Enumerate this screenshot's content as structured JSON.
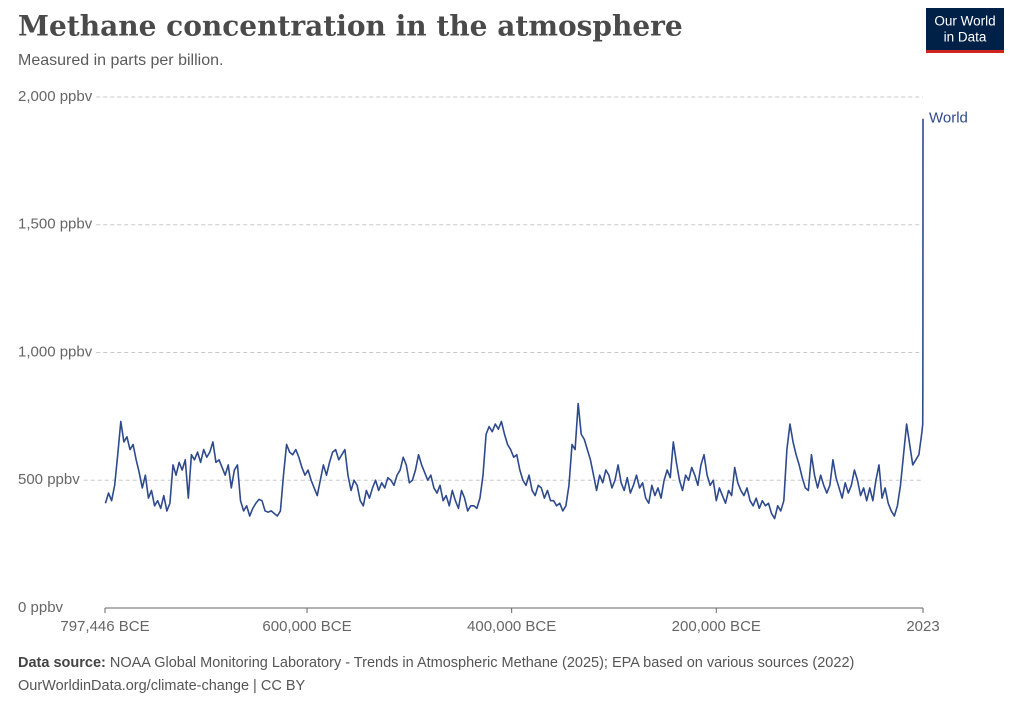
{
  "chart_data": {
    "type": "line",
    "title": "Methane concentration in the atmosphere",
    "subtitle": "Measured in parts per billion.",
    "logo": [
      "Our World",
      "in Data"
    ],
    "source_label": "Data source:",
    "source": "NOAA Global Monitoring Laboratory - Trends in Atmospheric Methane (2025); EPA based on various sources (2022)",
    "footer": "OurWorldinData.org/climate-change | CC BY",
    "grid": true,
    "xlim": [
      -797446,
      2023
    ],
    "xticks": [
      {
        "value": -797446,
        "label": "797,446 BCE"
      },
      {
        "value": -600000,
        "label": "600,000 BCE"
      },
      {
        "value": -400000,
        "label": "400,000 BCE"
      },
      {
        "value": -200000,
        "label": "200,000 BCE"
      },
      2023
    ],
    "ylim": [
      0,
      2000
    ],
    "yticks": [
      {
        "value": 0,
        "label": "0 ppbv"
      },
      {
        "value": 500,
        "label": "500 ppbv"
      },
      {
        "value": 1000,
        "label": "1,000 ppbv"
      },
      {
        "value": 1500,
        "label": "1,500 ppbv"
      },
      {
        "value": 2000,
        "label": "2,000 ppbv"
      }
    ],
    "x": [
      -797000,
      -794000,
      -791000,
      -788000,
      -785000,
      -782000,
      -779000,
      -776000,
      -773000,
      -770000,
      -767000,
      -764000,
      -761000,
      -758000,
      -755000,
      -752000,
      -749000,
      -746000,
      -743000,
      -740000,
      -737000,
      -734000,
      -731000,
      -728000,
      -725000,
      -722000,
      -719000,
      -716000,
      -713000,
      -710000,
      -707000,
      -704000,
      -701000,
      -698000,
      -695000,
      -692000,
      -689000,
      -686000,
      -683000,
      -680000,
      -677000,
      -674000,
      -671000,
      -668000,
      -665000,
      -662000,
      -659000,
      -656000,
      -653000,
      -650000,
      -647000,
      -644000,
      -641000,
      -638000,
      -635000,
      -632000,
      -629000,
      -626000,
      -623000,
      -620000,
      -617000,
      -614000,
      -611000,
      -608000,
      -605000,
      -602000,
      -599000,
      -596000,
      -593000,
      -590000,
      -587000,
      -584000,
      -581000,
      -578000,
      -575000,
      -572000,
      -569000,
      -566000,
      -563000,
      -560000,
      -557000,
      -554000,
      -551000,
      -548000,
      -545000,
      -542000,
      -539000,
      -536000,
      -533000,
      -530000,
      -527000,
      -524000,
      -521000,
      -518000,
      -515000,
      -512000,
      -509000,
      -506000,
      -503000,
      -500000,
      -497000,
      -494000,
      -491000,
      -488000,
      -485000,
      -482000,
      -479000,
      -476000,
      -473000,
      -470000,
      -467000,
      -464000,
      -461000,
      -458000,
      -455000,
      -452000,
      -449000,
      -446000,
      -443000,
      -440000,
      -437000,
      -434000,
      -431000,
      -428000,
      -425000,
      -422000,
      -419000,
      -416000,
      -413000,
      -410000,
      -407000,
      -404000,
      -401000,
      -398000,
      -395000,
      -392000,
      -389000,
      -386000,
      -383000,
      -380000,
      -377000,
      -374000,
      -371000,
      -368000,
      -365000,
      -362000,
      -359000,
      -356000,
      -353000,
      -350000,
      -347000,
      -344000,
      -341000,
      -338000,
      -335000,
      -332000,
      -329000,
      -326000,
      -323000,
      -320000,
      -317000,
      -314000,
      -311000,
      -308000,
      -305000,
      -302000,
      -299000,
      -296000,
      -293000,
      -290000,
      -287000,
      -284000,
      -281000,
      -278000,
      -275000,
      -272000,
      -269000,
      -266000,
      -263000,
      -260000,
      -257000,
      -254000,
      -251000,
      -248000,
      -245000,
      -242000,
      -239000,
      -236000,
      -233000,
      -230000,
      -227000,
      -224000,
      -221000,
      -218000,
      -215000,
      -212000,
      -209000,
      -206000,
      -203000,
      -200000,
      -197000,
      -194000,
      -191000,
      -188000,
      -185000,
      -182000,
      -179000,
      -176000,
      -173000,
      -170000,
      -167000,
      -164000,
      -161000,
      -158000,
      -155000,
      -152000,
      -149000,
      -146000,
      -143000,
      -140000,
      -137000,
      -134000,
      -131000,
      -128000,
      -125000,
      -122000,
      -119000,
      -116000,
      -113000,
      -110000,
      -107000,
      -104000,
      -101000,
      -98000,
      -95000,
      -92000,
      -89000,
      -86000,
      -83000,
      -80000,
      -77000,
      -74000,
      -71000,
      -68000,
      -65000,
      -62000,
      -59000,
      -56000,
      -53000,
      -50000,
      -47000,
      -44000,
      -41000,
      -38000,
      -35000,
      -32000,
      -29000,
      -26000,
      -23000,
      -20000,
      -17000,
      -14000,
      -11000,
      -8000,
      -5000,
      -2000,
      1000,
      1750,
      1900,
      1950,
      2000,
      2023
    ],
    "series": [
      {
        "name": "World",
        "color": "#2e4a8c",
        "values": [
          410,
          450,
          420,
          480,
          600,
          730,
          650,
          670,
          620,
          640,
          580,
          530,
          470,
          520,
          430,
          460,
          400,
          420,
          390,
          440,
          380,
          410,
          560,
          520,
          570,
          540,
          580,
          430,
          600,
          580,
          610,
          570,
          620,
          590,
          610,
          650,
          570,
          580,
          550,
          520,
          560,
          470,
          540,
          560,
          420,
          380,
          400,
          360,
          390,
          410,
          425,
          420,
          380,
          375,
          380,
          370,
          360,
          380,
          520,
          640,
          610,
          600,
          620,
          590,
          550,
          520,
          540,
          500,
          470,
          440,
          500,
          560,
          520,
          570,
          610,
          620,
          580,
          600,
          620,
          520,
          460,
          500,
          480,
          420,
          400,
          460,
          430,
          470,
          500,
          460,
          490,
          470,
          510,
          500,
          480,
          520,
          540,
          590,
          560,
          490,
          500,
          540,
          600,
          560,
          530,
          500,
          520,
          470,
          450,
          480,
          420,
          440,
          400,
          460,
          420,
          390,
          460,
          430,
          380,
          400,
          400,
          390,
          430,
          520,
          680,
          710,
          690,
          720,
          700,
          730,
          680,
          640,
          620,
          590,
          600,
          540,
          500,
          480,
          520,
          460,
          440,
          480,
          470,
          430,
          460,
          420,
          420,
          400,
          410,
          380,
          400,
          480,
          640,
          620,
          800,
          680,
          660,
          620,
          580,
          520,
          460,
          520,
          490,
          540,
          520,
          470,
          500,
          560,
          490,
          460,
          510,
          450,
          480,
          520,
          470,
          490,
          430,
          410,
          480,
          440,
          470,
          430,
          500,
          540,
          510,
          650,
          570,
          500,
          460,
          520,
          500,
          550,
          520,
          480,
          560,
          600,
          520,
          480,
          500,
          420,
          470,
          440,
          410,
          460,
          440,
          550,
          490,
          460,
          440,
          470,
          420,
          400,
          430,
          390,
          420,
          400,
          410,
          370,
          350,
          400,
          380,
          420,
          620,
          720,
          650,
          600,
          560,
          510,
          470,
          460,
          600,
          520,
          470,
          520,
          480,
          450,
          480,
          580,
          510,
          470,
          430,
          490,
          450,
          480,
          540,
          500,
          440,
          470,
          420,
          470,
          420,
          500,
          560,
          430,
          470,
          410,
          380,
          360,
          400,
          480,
          600,
          720,
          640,
          560,
          580,
          600,
          690,
          720,
          880,
          1150,
          1770,
          1915
        ]
      }
    ]
  }
}
